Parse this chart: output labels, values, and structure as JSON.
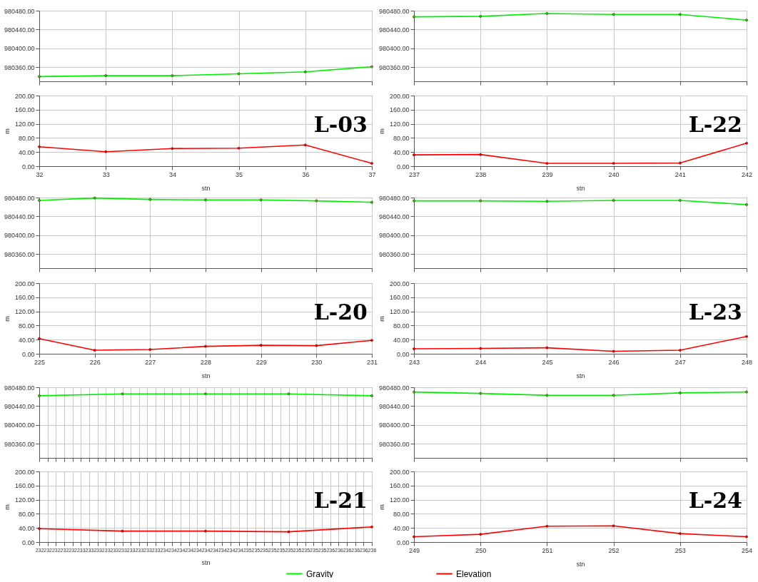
{
  "chart_data": [
    {
      "type": "line",
      "x": [
        32,
        33,
        34,
        35,
        36,
        37
      ],
      "xlim": [
        32,
        37
      ],
      "xticks": [
        32,
        33,
        34,
        35,
        36,
        37
      ],
      "ylim": [
        980330,
        980480
      ],
      "yticks": [
        {
          "value": 980360,
          "label": "980360.00"
        },
        {
          "value": 980400,
          "label": "980400.00"
        },
        {
          "value": 980440,
          "label": "980440.00"
        },
        {
          "value": 980480,
          "label": "980480.00"
        }
      ],
      "tick_labels": "y",
      "grid": true,
      "marker": "circle",
      "line_style": "solid",
      "series": [
        {
          "color": "#00ee00",
          "values": [
            980340,
            980342,
            980342,
            980346,
            980350,
            980361
          ]
        }
      ]
    },
    {
      "type": "line",
      "x": [
        237,
        238,
        239,
        240,
        241,
        242
      ],
      "xlim": [
        237,
        242
      ],
      "xticks": [
        237,
        238,
        239,
        240,
        241,
        242
      ],
      "ylim": [
        980330,
        980480
      ],
      "yticks": [
        {
          "value": 980360,
          "label": "980360.00"
        },
        {
          "value": 980400,
          "label": "980400.00"
        },
        {
          "value": 980440,
          "label": "980440.00"
        },
        {
          "value": 980480,
          "label": "980480.00"
        }
      ],
      "tick_labels": "y",
      "grid": true,
      "marker": "circle",
      "line_style": "solid",
      "series": [
        {
          "color": "#00ee00",
          "values": [
            980467,
            980468,
            980474,
            980472,
            980472,
            980460
          ]
        }
      ]
    },
    {
      "type": "line",
      "x": [
        32,
        33,
        34,
        35,
        36,
        37
      ],
      "xlim": [
        32,
        37
      ],
      "xticks": [
        32,
        33,
        34,
        35,
        36,
        37
      ],
      "xlabel": "stn",
      "ylabel": "m",
      "ylim": [
        0,
        200
      ],
      "yticks": [
        {
          "value": 0,
          "label": "0.00"
        },
        {
          "value": 40,
          "label": "40.00"
        },
        {
          "value": 80,
          "label": "80.00"
        },
        {
          "value": 120,
          "label": "120.00"
        },
        {
          "value": 160,
          "label": "160.00"
        },
        {
          "value": 200,
          "label": "200.00"
        }
      ],
      "grid": true,
      "marker": "circle",
      "line_style": "solid",
      "annotations": [
        "L-03"
      ],
      "series": [
        {
          "color": "#ff0000",
          "values": [
            55,
            41,
            50,
            51,
            60,
            8
          ]
        }
      ]
    },
    {
      "type": "line",
      "x": [
        237,
        238,
        239,
        240,
        241,
        242
      ],
      "xlim": [
        237,
        242
      ],
      "xticks": [
        237,
        238,
        239,
        240,
        241,
        242
      ],
      "xlabel": "stn",
      "ylabel": "m",
      "ylim": [
        0,
        200
      ],
      "yticks": [
        {
          "value": 0,
          "label": "0.00"
        },
        {
          "value": 40,
          "label": "40.00"
        },
        {
          "value": 80,
          "label": "80.00"
        },
        {
          "value": 120,
          "label": "120.00"
        },
        {
          "value": 160,
          "label": "160.00"
        },
        {
          "value": 200,
          "label": "200.00"
        }
      ],
      "grid": true,
      "marker": "circle",
      "line_style": "solid",
      "annotations": [
        "L-22"
      ],
      "series": [
        {
          "color": "#ff0000",
          "values": [
            32,
            33,
            8,
            8,
            9,
            65
          ]
        }
      ]
    },
    {
      "type": "line",
      "x": [
        225,
        226,
        227,
        228,
        229,
        230,
        231
      ],
      "xlim": [
        225,
        231
      ],
      "xticks": [
        225,
        226,
        227,
        228,
        229,
        230,
        231
      ],
      "ylim": [
        980330,
        980480
      ],
      "yticks": [
        {
          "value": 980360,
          "label": "980360.00"
        },
        {
          "value": 980400,
          "label": "980400.00"
        },
        {
          "value": 980440,
          "label": "980440.00"
        },
        {
          "value": 980480,
          "label": "980480.00"
        }
      ],
      "tick_labels": "y",
      "grid": true,
      "marker": "circle",
      "line_style": "solid",
      "series": [
        {
          "color": "#00ee00",
          "values": [
            980474,
            980479,
            980476,
            980475,
            980475,
            980473,
            980470
          ]
        }
      ]
    },
    {
      "type": "line",
      "x": [
        243,
        244,
        245,
        246,
        247,
        248
      ],
      "xlim": [
        243,
        248
      ],
      "xticks": [
        243,
        244,
        245,
        246,
        247,
        248
      ],
      "ylim": [
        980330,
        980480
      ],
      "yticks": [
        {
          "value": 980360,
          "label": "980360.00"
        },
        {
          "value": 980400,
          "label": "980400.00"
        },
        {
          "value": 980440,
          "label": "980440.00"
        },
        {
          "value": 980480,
          "label": "980480.00"
        }
      ],
      "tick_labels": "y",
      "grid": true,
      "marker": "circle",
      "line_style": "solid",
      "series": [
        {
          "color": "#00ee00",
          "values": [
            980473,
            980473,
            980472,
            980474,
            980474,
            980465
          ]
        }
      ]
    },
    {
      "type": "line",
      "x": [
        225,
        226,
        227,
        228,
        229,
        230,
        231
      ],
      "xlim": [
        225,
        231
      ],
      "xticks": [
        225,
        226,
        227,
        228,
        229,
        230,
        231
      ],
      "xlabel": "stn",
      "ylabel": "m",
      "ylim": [
        0,
        200
      ],
      "yticks": [
        {
          "value": 0,
          "label": "0.00"
        },
        {
          "value": 40,
          "label": "40.00"
        },
        {
          "value": 80,
          "label": "80.00"
        },
        {
          "value": 120,
          "label": "120.00"
        },
        {
          "value": 160,
          "label": "160.00"
        },
        {
          "value": 200,
          "label": "200.00"
        }
      ],
      "grid": true,
      "marker": "circle",
      "line_style": "solid",
      "annotations": [
        "L-20"
      ],
      "series": [
        {
          "color": "#ff0000",
          "values": [
            43,
            10,
            12,
            21,
            24,
            23,
            38
          ]
        }
      ]
    },
    {
      "type": "line",
      "x": [
        243,
        244,
        245,
        246,
        247,
        248
      ],
      "xlim": [
        243,
        248
      ],
      "xticks": [
        243,
        244,
        245,
        246,
        247,
        248
      ],
      "xlabel": "stn",
      "ylabel": "m",
      "ylim": [
        0,
        200
      ],
      "yticks": [
        {
          "value": 0,
          "label": "0.00"
        },
        {
          "value": 40,
          "label": "40.00"
        },
        {
          "value": 80,
          "label": "80.00"
        },
        {
          "value": 120,
          "label": "120.00"
        },
        {
          "value": 160,
          "label": "160.00"
        },
        {
          "value": 200,
          "label": "200.00"
        }
      ],
      "grid": true,
      "marker": "circle",
      "line_style": "solid",
      "annotations": [
        "L-23"
      ],
      "series": [
        {
          "color": "#ff0000",
          "values": [
            14,
            15,
            17,
            7,
            10,
            49
          ]
        }
      ]
    },
    {
      "type": "line",
      "x": [
        232,
        233,
        234,
        235,
        236
      ],
      "xlim": [
        232,
        236
      ],
      "xticks": [
        232,
        232.1,
        232.2,
        232.3,
        232.4,
        232.5,
        232.6,
        232.7,
        232.8,
        232.9,
        233,
        233.1,
        233.2,
        233.3,
        233.4,
        233.5,
        233.6,
        233.7,
        233.8,
        233.9,
        234,
        234.1,
        234.2,
        234.3,
        234.4,
        234.5,
        234.6,
        234.7,
        234.8,
        234.9,
        235,
        235.1,
        235.2,
        235.3,
        235.4,
        235.5,
        235.6,
        235.7,
        235.8,
        235.9,
        236
      ],
      "ylim": [
        980330,
        980480
      ],
      "yticks": [
        {
          "value": 980360,
          "label": "980360.00"
        },
        {
          "value": 980400,
          "label": "980400.00"
        },
        {
          "value": 980440,
          "label": "980440.00"
        },
        {
          "value": 980480,
          "label": "980480.00"
        }
      ],
      "tick_labels": "y",
      "grid": true,
      "marker": "circle",
      "line_style": "solid",
      "legend": "bottom",
      "series": [
        {
          "name": "Gravity",
          "color": "#00ee00",
          "values": [
            980462,
            980466,
            980466,
            980466,
            980462
          ]
        }
      ]
    },
    {
      "type": "line",
      "x": [
        249,
        250,
        251,
        252,
        253,
        254
      ],
      "xlim": [
        249,
        254
      ],
      "xticks": [
        249,
        250,
        251,
        252,
        253,
        254
      ],
      "ylim": [
        980330,
        980480
      ],
      "yticks": [
        {
          "value": 980360,
          "label": "980360.00"
        },
        {
          "value": 980400,
          "label": "980400.00"
        },
        {
          "value": 980440,
          "label": "980440.00"
        },
        {
          "value": 980480,
          "label": "980480.00"
        }
      ],
      "tick_labels": "y",
      "grid": true,
      "marker": "circle",
      "line_style": "solid",
      "series": [
        {
          "color": "#00ee00",
          "values": [
            980470,
            980467,
            980463,
            980463,
            980468,
            980470
          ]
        }
      ]
    },
    {
      "type": "line",
      "x": [
        232,
        233,
        234,
        235,
        236
      ],
      "xlim": [
        232,
        236
      ],
      "xticks": [
        {
          "value": 232,
          "label": "232"
        },
        {
          "value": 232.1,
          "label": "232"
        },
        {
          "value": 232.2,
          "label": "232"
        },
        {
          "value": 232.3,
          "label": "232"
        },
        {
          "value": 232.4,
          "label": "232"
        },
        {
          "value": 232.5,
          "label": "233"
        },
        {
          "value": 232.6,
          "label": "233"
        },
        {
          "value": 232.7,
          "label": "233"
        },
        {
          "value": 232.8,
          "label": "233"
        },
        {
          "value": 232.9,
          "label": "233"
        },
        {
          "value": 233,
          "label": "233"
        },
        {
          "value": 233.1,
          "label": "233"
        },
        {
          "value": 233.2,
          "label": "233"
        },
        {
          "value": 233.3,
          "label": "233"
        },
        {
          "value": 233.4,
          "label": "233"
        },
        {
          "value": 233.5,
          "label": "234"
        },
        {
          "value": 233.6,
          "label": "234"
        },
        {
          "value": 233.7,
          "label": "234"
        },
        {
          "value": 233.8,
          "label": "234"
        },
        {
          "value": 233.9,
          "label": "234"
        },
        {
          "value": 234,
          "label": "234"
        },
        {
          "value": 234.1,
          "label": "234"
        },
        {
          "value": 234.2,
          "label": "234"
        },
        {
          "value": 234.3,
          "label": "234"
        },
        {
          "value": 234.4,
          "label": "234"
        },
        {
          "value": 234.5,
          "label": "235"
        },
        {
          "value": 234.6,
          "label": "235"
        },
        {
          "value": 234.7,
          "label": "235"
        },
        {
          "value": 234.8,
          "label": "235"
        },
        {
          "value": 234.9,
          "label": "235"
        },
        {
          "value": 235,
          "label": "235"
        },
        {
          "value": 235.1,
          "label": "235"
        },
        {
          "value": 235.2,
          "label": "235"
        },
        {
          "value": 235.3,
          "label": "235"
        },
        {
          "value": 235.4,
          "label": "235"
        },
        {
          "value": 235.5,
          "label": "236"
        },
        {
          "value": 235.6,
          "label": "236"
        },
        {
          "value": 235.7,
          "label": "236"
        },
        {
          "value": 235.8,
          "label": "236"
        },
        {
          "value": 235.9,
          "label": "236"
        },
        {
          "value": 236,
          "label": "236"
        }
      ],
      "xlabel": "stn",
      "ylabel": "m",
      "ylim": [
        0,
        200
      ],
      "yticks": [
        {
          "value": 0,
          "label": "0.00"
        },
        {
          "value": 40,
          "label": "40.00"
        },
        {
          "value": 80,
          "label": "80.00"
        },
        {
          "value": 120,
          "label": "120.00"
        },
        {
          "value": 160,
          "label": "160.00"
        },
        {
          "value": 200,
          "label": "200.00"
        }
      ],
      "grid": true,
      "marker": "circle",
      "line_style": "solid",
      "annotations": [
        "L-21"
      ],
      "series": [
        {
          "color": "#ff0000",
          "values": [
            38,
            31,
            31,
            29,
            43
          ]
        }
      ]
    },
    {
      "type": "line",
      "x": [
        249,
        250,
        251,
        252,
        253,
        254
      ],
      "xlim": [
        249,
        254
      ],
      "xticks": [
        249,
        250,
        251,
        252,
        253,
        254
      ],
      "xlabel": "stn",
      "ylabel": "m",
      "ylim": [
        0,
        200
      ],
      "yticks": [
        {
          "value": 0,
          "label": "0.00"
        },
        {
          "value": 40,
          "label": "40.00"
        },
        {
          "value": 80,
          "label": "80.00"
        },
        {
          "value": 120,
          "label": "120.00"
        },
        {
          "value": 160,
          "label": "160.00"
        },
        {
          "value": 200,
          "label": "200.00"
        }
      ],
      "grid": true,
      "marker": "circle",
      "line_style": "solid",
      "legend": "bottom",
      "annotations": [
        "L-24"
      ],
      "series": [
        {
          "name": "Elevation",
          "color": "#ff0000",
          "values": [
            15,
            22,
            45,
            46,
            24,
            15
          ]
        }
      ]
    }
  ]
}
